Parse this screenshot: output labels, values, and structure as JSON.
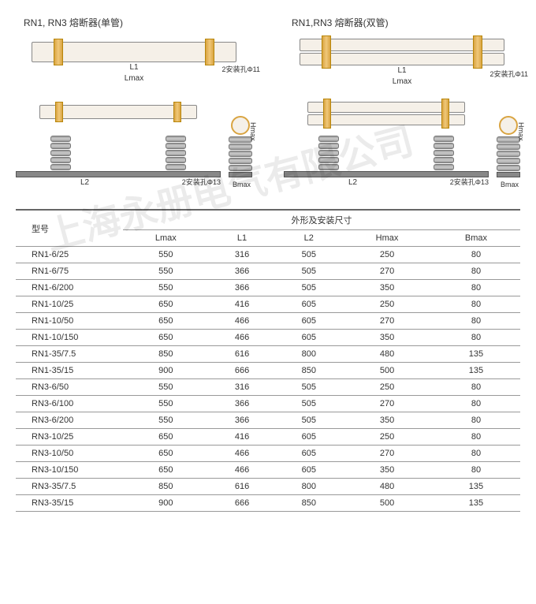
{
  "diagrams": {
    "left_title": "RN1, RN3 熔断器(单管)",
    "right_title": "RN1,RN3 熔断器(双管)",
    "labels": {
      "L1": "L1",
      "Lmax": "Lmax",
      "L2": "L2",
      "Hmax": "Hmax",
      "Bmax": "Bmax",
      "hole11": "2安装孔Φ11",
      "hole13": "2安装孔Φ13"
    }
  },
  "table": {
    "header_model": "型号",
    "header_group": "外形及安装尺寸",
    "columns": [
      "Lmax",
      "L1",
      "L2",
      "Hmax",
      "Bmax"
    ],
    "rows": [
      {
        "model": "RN1-6/25",
        "v": [
          "550",
          "316",
          "505",
          "250",
          "80"
        ]
      },
      {
        "model": "RN1-6/75",
        "v": [
          "550",
          "366",
          "505",
          "270",
          "80"
        ]
      },
      {
        "model": "RN1-6/200",
        "v": [
          "550",
          "366",
          "505",
          "350",
          "80"
        ]
      },
      {
        "model": "RN1-10/25",
        "v": [
          "650",
          "416",
          "605",
          "250",
          "80"
        ]
      },
      {
        "model": "RN1-10/50",
        "v": [
          "650",
          "466",
          "605",
          "270",
          "80"
        ]
      },
      {
        "model": "RN1-10/150",
        "v": [
          "650",
          "466",
          "605",
          "350",
          "80"
        ]
      },
      {
        "model": "RN1-35/7.5",
        "v": [
          "850",
          "616",
          "800",
          "480",
          "135"
        ]
      },
      {
        "model": "RN1-35/15",
        "v": [
          "900",
          "666",
          "850",
          "500",
          "135"
        ]
      },
      {
        "model": "RN3-6/50",
        "v": [
          "550",
          "316",
          "505",
          "250",
          "80"
        ]
      },
      {
        "model": "RN3-6/100",
        "v": [
          "550",
          "366",
          "505",
          "270",
          "80"
        ]
      },
      {
        "model": "RN3-6/200",
        "v": [
          "550",
          "366",
          "505",
          "350",
          "80"
        ]
      },
      {
        "model": "RN3-10/25",
        "v": [
          "650",
          "416",
          "605",
          "250",
          "80"
        ]
      },
      {
        "model": "RN3-10/50",
        "v": [
          "650",
          "466",
          "605",
          "270",
          "80"
        ]
      },
      {
        "model": "RN3-10/150",
        "v": [
          "650",
          "466",
          "605",
          "350",
          "80"
        ]
      },
      {
        "model": "RN3-35/7.5",
        "v": [
          "850",
          "616",
          "800",
          "480",
          "135"
        ]
      },
      {
        "model": "RN3-35/15",
        "v": [
          "900",
          "666",
          "850",
          "500",
          "135"
        ]
      }
    ]
  },
  "watermark": "上海永册电气有限公司",
  "colors": {
    "gold": "#d9a441",
    "border": "#999999",
    "text": "#333333"
  }
}
